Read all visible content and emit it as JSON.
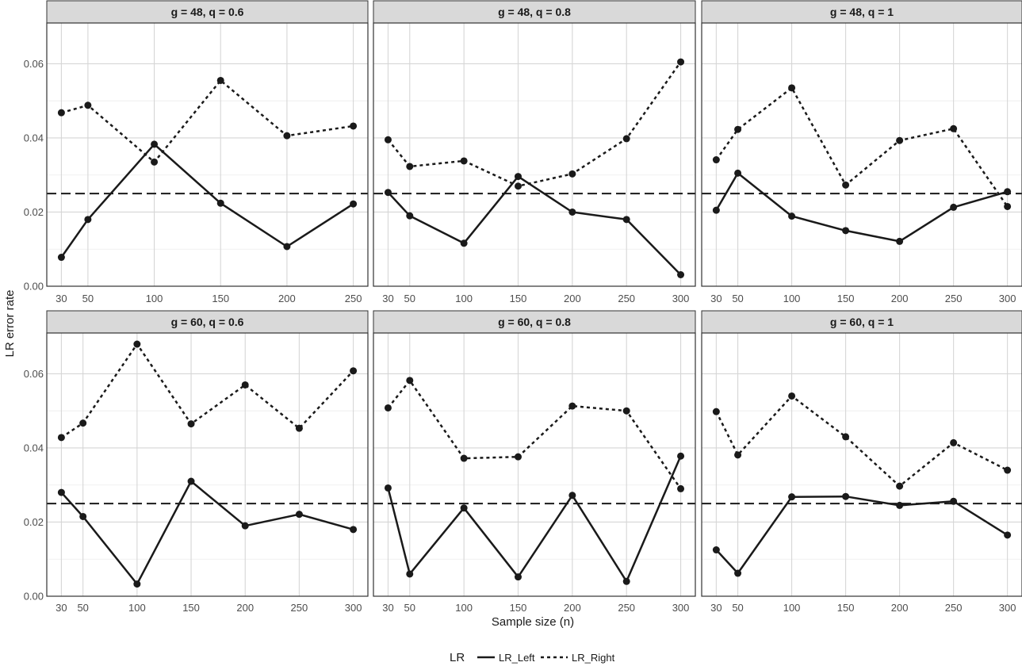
{
  "chart_data": {
    "type": "line",
    "ylabel": "LR error rate",
    "xlabel": "Sample size (n)",
    "ylim": [
      0,
      0.071
    ],
    "yticks": [
      0.0,
      0.02,
      0.04,
      0.06
    ],
    "ytick_labels": [
      "0.00",
      "0.02",
      "0.04",
      "0.06"
    ],
    "reference_line": 0.025,
    "legend": {
      "title": "LR",
      "position": "bottom",
      "entries": [
        {
          "name": "LR_Left",
          "linetype": "solid"
        },
        {
          "name": "LR_Right",
          "linetype": "dashed"
        }
      ]
    },
    "grid": true,
    "panels": [
      {
        "label": "g = 48, q = 0.6",
        "x": [
          30,
          50,
          100,
          150,
          200,
          250
        ],
        "xlim": [
          19,
          261
        ],
        "xticks": [
          30,
          50,
          100,
          150,
          200,
          250
        ],
        "series": [
          {
            "name": "LR_Left",
            "values": [
              0.0078,
              0.018,
              0.0383,
              0.0224,
              0.0107,
              0.0222
            ]
          },
          {
            "name": "LR_Right",
            "values": [
              0.0468,
              0.0488,
              0.0335,
              0.0555,
              0.0406,
              0.0432
            ]
          }
        ]
      },
      {
        "label": "g = 48, q = 0.8",
        "x": [
          30,
          50,
          100,
          150,
          200,
          250,
          300
        ],
        "xlim": [
          16.5,
          313.5
        ],
        "xticks": [
          30,
          50,
          100,
          150,
          200,
          250,
          300
        ],
        "series": [
          {
            "name": "LR_Left",
            "values": [
              0.0253,
              0.019,
              0.0116,
              0.0296,
              0.02,
              0.018,
              0.0031
            ]
          },
          {
            "name": "LR_Right",
            "values": [
              0.0395,
              0.0323,
              0.0338,
              0.027,
              0.0303,
              0.0398,
              0.0605
            ]
          }
        ]
      },
      {
        "label": "g = 48, q = 1",
        "x": [
          30,
          50,
          100,
          150,
          200,
          250,
          300
        ],
        "xlim": [
          16.5,
          313.5
        ],
        "xticks": [
          30,
          50,
          100,
          150,
          200,
          250,
          300
        ],
        "series": [
          {
            "name": "LR_Left",
            "values": [
              0.0205,
              0.0305,
              0.0189,
              0.015,
              0.0121,
              0.0213,
              0.0255
            ]
          },
          {
            "name": "LR_Right",
            "values": [
              0.0341,
              0.0423,
              0.0535,
              0.0273,
              0.0393,
              0.0425,
              0.0215
            ]
          }
        ]
      },
      {
        "label": "g = 60, q = 0.6",
        "x": [
          30,
          50,
          100,
          150,
          200,
          250,
          300
        ],
        "xlim": [
          16.5,
          313.5
        ],
        "xticks": [
          30,
          50,
          100,
          150,
          200,
          250,
          300
        ],
        "series": [
          {
            "name": "LR_Left",
            "values": [
              0.028,
              0.0215,
              0.0033,
              0.031,
              0.019,
              0.0221,
              0.018
            ]
          },
          {
            "name": "LR_Right",
            "values": [
              0.0428,
              0.0467,
              0.068,
              0.0465,
              0.057,
              0.0453,
              0.0608
            ]
          }
        ]
      },
      {
        "label": "g = 60, q = 0.8",
        "x": [
          30,
          50,
          100,
          150,
          200,
          250,
          300
        ],
        "xlim": [
          16.5,
          313.5
        ],
        "xticks": [
          30,
          50,
          100,
          150,
          200,
          250,
          300
        ],
        "series": [
          {
            "name": "LR_Left",
            "values": [
              0.0292,
              0.006,
              0.0238,
              0.0052,
              0.0272,
              0.004,
              0.0378
            ]
          },
          {
            "name": "LR_Right",
            "values": [
              0.0508,
              0.0582,
              0.0372,
              0.0376,
              0.0513,
              0.05,
              0.029
            ]
          }
        ]
      },
      {
        "label": "g = 60, q = 1",
        "x": [
          30,
          50,
          100,
          150,
          200,
          250,
          300
        ],
        "xlim": [
          16.5,
          313.5
        ],
        "xticks": [
          30,
          50,
          100,
          150,
          200,
          250,
          300
        ],
        "series": [
          {
            "name": "LR_Left",
            "values": [
              0.0125,
              0.0062,
              0.0268,
              0.0269,
              0.0245,
              0.0256,
              0.0165
            ]
          },
          {
            "name": "LR_Right",
            "values": [
              0.0498,
              0.0381,
              0.054,
              0.043,
              0.0297,
              0.0414,
              0.034
            ]
          }
        ]
      }
    ]
  },
  "colors": {
    "line": "#1a1a1a",
    "strip_fill": "#d9d9d9",
    "strip_border": "#333333",
    "panel_border": "#333333",
    "grid_major": "#d6d6d6",
    "grid_minor": "#ececec",
    "tick_text": "#4d4d4d"
  }
}
